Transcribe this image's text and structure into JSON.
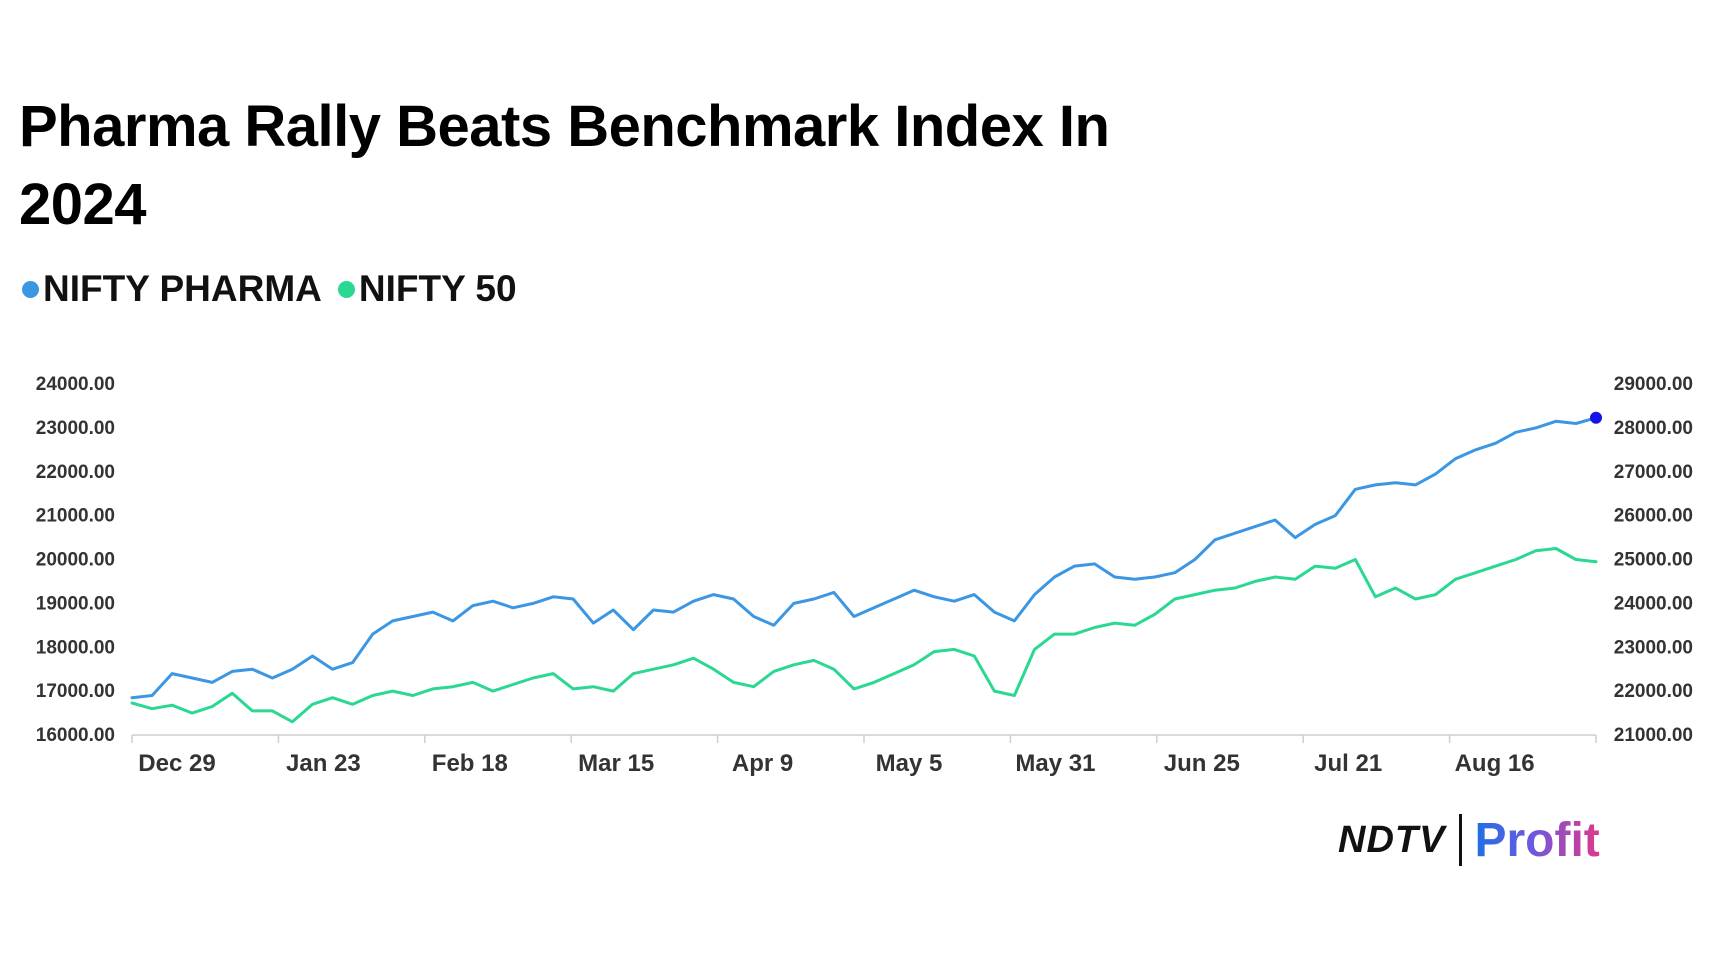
{
  "chart_data": {
    "type": "line",
    "title": "Pharma Rally Beats Benchmark Index In 2024",
    "x_ticks": [
      "Dec 29",
      "Jan 23",
      "Feb 18",
      "Mar 15",
      "Apr 9",
      "May 5",
      "May 31",
      "Jun 25",
      "Jul 21",
      "Aug 16"
    ],
    "x": [
      "Dec 29",
      "Jan 2",
      "Jan 5",
      "Jan 9",
      "Jan 12",
      "Jan 16",
      "Jan 19",
      "Jan 23",
      "Jan 26",
      "Jan 30",
      "Feb 2",
      "Feb 6",
      "Feb 9",
      "Feb 13",
      "Feb 16",
      "Feb 18",
      "Feb 22",
      "Feb 26",
      "Mar 1",
      "Mar 5",
      "Mar 8",
      "Mar 12",
      "Mar 15",
      "Mar 19",
      "Mar 22",
      "Mar 26",
      "Mar 29",
      "Apr 2",
      "Apr 5",
      "Apr 9",
      "Apr 12",
      "Apr 16",
      "Apr 19",
      "Apr 23",
      "Apr 26",
      "Apr 30",
      "May 5",
      "May 8",
      "May 11",
      "May 15",
      "May 18",
      "May 22",
      "May 26",
      "May 29",
      "May 31",
      "Jun 3",
      "Jun 4",
      "Jun 7",
      "Jun 11",
      "Jun 14",
      "Jun 18",
      "Jun 21",
      "Jun 25",
      "Jun 28",
      "Jul 2",
      "Jul 5",
      "Jul 9",
      "Jul 12",
      "Jul 16",
      "Jul 19",
      "Jul 21",
      "Jul 25",
      "Jul 29",
      "Aug 1",
      "Aug 5",
      "Aug 8",
      "Aug 12",
      "Aug 16",
      "Aug 20",
      "Aug 23",
      "Aug 27",
      "Aug 30",
      "Sep 3",
      "Sep 6"
    ],
    "series": [
      {
        "name": "NIFTY PHARMA",
        "axis": "left",
        "color": "#3b97e3",
        "values": [
          16850,
          16900,
          17400,
          17300,
          17200,
          17450,
          17500,
          17300,
          17500,
          17800,
          17500,
          17650,
          18300,
          18600,
          18700,
          18800,
          18600,
          18950,
          19050,
          18900,
          19000,
          19150,
          19100,
          18550,
          18850,
          18400,
          18850,
          18800,
          19050,
          19200,
          19100,
          18700,
          18500,
          19000,
          19100,
          19250,
          18700,
          18900,
          19100,
          19300,
          19150,
          19050,
          19200,
          18800,
          18600,
          19200,
          19600,
          19850,
          19900,
          19600,
          19550,
          19600,
          19700,
          20000,
          20450,
          20600,
          20750,
          20900,
          20500,
          20800,
          21000,
          21600,
          21700,
          21750,
          21700,
          21950,
          22300,
          22500,
          22650,
          22900,
          23000,
          23150,
          23100,
          23230
        ]
      },
      {
        "name": "NIFTY 50",
        "axis": "right",
        "color": "#2bd891",
        "values": [
          21730,
          21600,
          21680,
          21500,
          21650,
          21950,
          21550,
          21550,
          21300,
          21700,
          21850,
          21700,
          21900,
          22000,
          21900,
          22050,
          22100,
          22200,
          22000,
          22150,
          22300,
          22400,
          22050,
          22100,
          22000,
          22400,
          22500,
          22600,
          22750,
          22500,
          22200,
          22100,
          22450,
          22600,
          22700,
          22500,
          22050,
          22200,
          22400,
          22600,
          22900,
          22950,
          22800,
          22000,
          21900,
          22950,
          23300,
          23300,
          23450,
          23550,
          23500,
          23750,
          24100,
          24200,
          24300,
          24350,
          24500,
          24600,
          24550,
          24850,
          24800,
          25000,
          24150,
          24350,
          24100,
          24200,
          24550,
          24700,
          24850,
          25000,
          25200,
          25250,
          25000,
          24950
        ]
      }
    ],
    "y_left": {
      "ticks": [
        "16000.00",
        "17000.00",
        "18000.00",
        "19000.00",
        "20000.00",
        "21000.00",
        "22000.00",
        "23000.00",
        "24000.00"
      ],
      "range": [
        16000,
        24000
      ]
    },
    "y_right": {
      "ticks": [
        "21000.00",
        "22000.00",
        "23000.00",
        "24000.00",
        "25000.00",
        "26000.00",
        "27000.00",
        "28000.00",
        "29000.00"
      ],
      "range": [
        21000,
        29000
      ]
    },
    "last_point_marker_color": "#1414e6",
    "grid": false,
    "legend_placement": "top-left"
  },
  "legend": [
    {
      "label": "NIFTY PHARMA",
      "color": "#3b97e3"
    },
    {
      "label": "NIFTY 50",
      "color": "#2bd891"
    }
  ],
  "brand": {
    "left": "NDTV",
    "right": "Profit"
  }
}
